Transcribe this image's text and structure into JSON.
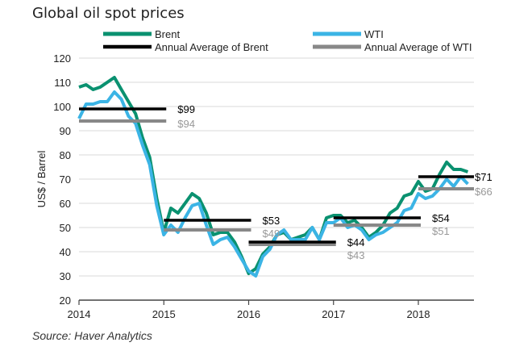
{
  "chart_data": {
    "type": "line",
    "title": "Global oil spot prices",
    "xlabel": "",
    "ylabel": "US$ / Barrel",
    "source": "Source: Haver Analytics",
    "ylim": [
      20,
      120
    ],
    "xlim": [
      2014,
      2018.67
    ],
    "yticks": [
      20,
      30,
      40,
      50,
      60,
      70,
      80,
      90,
      100,
      110,
      120
    ],
    "xticks": [
      2014,
      2015,
      2016,
      2017,
      2018
    ],
    "grid": true,
    "legend": [
      "Brent",
      "WTI",
      "Annual Average of Brent",
      "Annual Average of WTI"
    ],
    "legend_position": "top",
    "series": [
      {
        "name": "Brent",
        "color": "#0a9170",
        "x_start": 2014.0,
        "step": 0.08333,
        "values": [
          108,
          109,
          107,
          108,
          110,
          112,
          107,
          102,
          97,
          87,
          79,
          62,
          48,
          58,
          56,
          60,
          64,
          62,
          56,
          47,
          48,
          48,
          44,
          38,
          31,
          33,
          39,
          42,
          47,
          48,
          45,
          46,
          47,
          50,
          45,
          54,
          55,
          55,
          52,
          53,
          50,
          46,
          48,
          51,
          56,
          58,
          63,
          64,
          69,
          65,
          66,
          72,
          77,
          74,
          74,
          73
        ]
      },
      {
        "name": "WTI",
        "color": "#3bb4e5",
        "x_start": 2014.0,
        "step": 0.08333,
        "values": [
          95,
          101,
          101,
          102,
          102,
          106,
          103,
          96,
          93,
          84,
          76,
          59,
          47,
          51,
          48,
          54,
          59,
          60,
          51,
          43,
          45,
          46,
          42,
          37,
          32,
          30,
          38,
          41,
          47,
          49,
          45,
          45,
          45,
          50,
          45,
          52,
          52,
          54,
          50,
          51,
          49,
          45,
          47,
          48,
          50,
          52,
          57,
          58,
          64,
          62,
          63,
          66,
          70,
          67,
          71,
          68
        ]
      }
    ],
    "annual_averages": [
      {
        "year": 2014,
        "brent": 99,
        "wti": 94,
        "brent_label": "$99",
        "wti_label": "$94"
      },
      {
        "year": 2015,
        "brent": 53,
        "wti": 49,
        "brent_label": "$53",
        "wti_label": "$49"
      },
      {
        "year": 2016,
        "brent": 44,
        "wti": 43,
        "brent_label": "$44",
        "wti_label": "$43"
      },
      {
        "year": 2017,
        "brent": 54,
        "wti": 51,
        "brent_label": "$54",
        "wti_label": "$51"
      },
      {
        "year": 2018,
        "brent": 71,
        "wti": 66,
        "brent_label": "$71",
        "wti_label": "$66"
      }
    ],
    "avg_colors": {
      "brent": "#000000",
      "wti": "#888888"
    }
  }
}
